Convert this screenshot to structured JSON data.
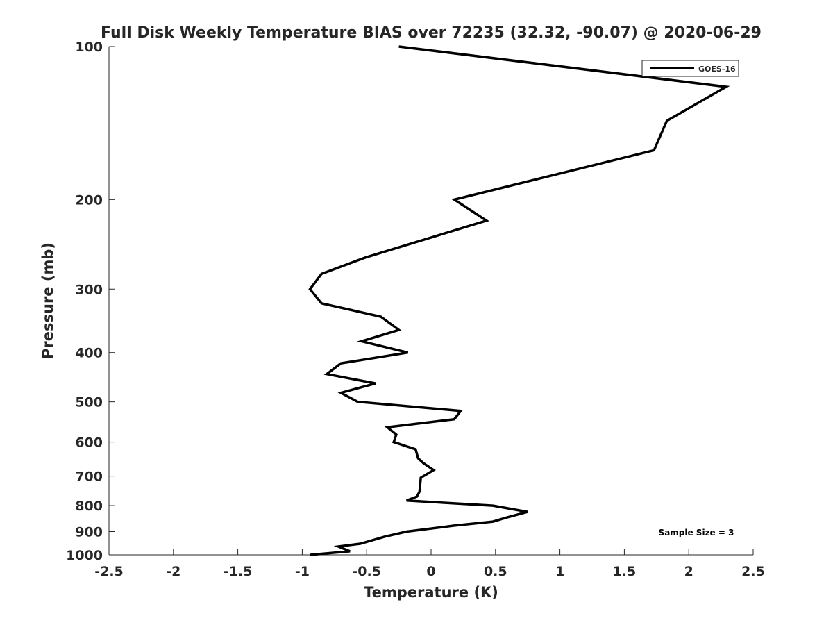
{
  "chart_data": {
    "type": "line",
    "title": "Full Disk Weekly Temperature BIAS over 72235 (32.32, -90.07) @ 2020-06-29",
    "xlabel": "Temperature (K)",
    "ylabel": "Pressure (mb)",
    "xlim": [
      -2.5,
      2.5
    ],
    "ylim": [
      100,
      1000
    ],
    "yscale": "log",
    "yreversed": true,
    "grid": false,
    "legend_position": "top-right",
    "xticks": [
      "-2.5",
      "-2",
      "-1.5",
      "-1",
      "-0.5",
      "0",
      "0.5",
      "1",
      "1.5",
      "2",
      "2.5"
    ],
    "xtick_values": [
      -2.5,
      -2,
      -1.5,
      -1,
      -0.5,
      0,
      0.5,
      1,
      1.5,
      2,
      2.5
    ],
    "yticks": [
      "100",
      "200",
      "300",
      "400",
      "500",
      "600",
      "700",
      "800",
      "900",
      "1000"
    ],
    "ytick_values": [
      100,
      200,
      300,
      400,
      500,
      600,
      700,
      800,
      900,
      1000
    ],
    "annotation": "Sample Size = 3",
    "series": [
      {
        "name": "GOES-16",
        "color": "#000000",
        "points": [
          [
            -0.25,
            100
          ],
          [
            2.29,
            120
          ],
          [
            1.83,
            140
          ],
          [
            1.73,
            160
          ],
          [
            0.18,
            200
          ],
          [
            0.43,
            220
          ],
          [
            -0.51,
            260
          ],
          [
            -0.85,
            280
          ],
          [
            -0.94,
            300
          ],
          [
            -0.85,
            320
          ],
          [
            -0.39,
            340
          ],
          [
            -0.25,
            361
          ],
          [
            -0.54,
            380
          ],
          [
            -0.18,
            400
          ],
          [
            -0.7,
            420
          ],
          [
            -0.81,
            441
          ],
          [
            -0.43,
            460
          ],
          [
            -0.7,
            480
          ],
          [
            -0.57,
            500
          ],
          [
            0.23,
            521
          ],
          [
            0.18,
            541
          ],
          [
            -0.34,
            561
          ],
          [
            -0.27,
            580
          ],
          [
            -0.29,
            600
          ],
          [
            -0.12,
            620
          ],
          [
            -0.1,
            646
          ],
          [
            -0.06,
            660
          ],
          [
            0.02,
            681
          ],
          [
            -0.08,
            705
          ],
          [
            -0.09,
            751
          ],
          [
            -0.11,
            768
          ],
          [
            -0.19,
            782
          ],
          [
            0.48,
            800
          ],
          [
            0.75,
            823
          ],
          [
            0.59,
            844
          ],
          [
            0.48,
            860
          ],
          [
            0.18,
            876
          ],
          [
            -0.19,
            900
          ],
          [
            -0.36,
            921
          ],
          [
            -0.55,
            951
          ],
          [
            -0.72,
            963
          ],
          [
            -0.63,
            984
          ],
          [
            -0.94,
            1000
          ]
        ]
      }
    ]
  }
}
